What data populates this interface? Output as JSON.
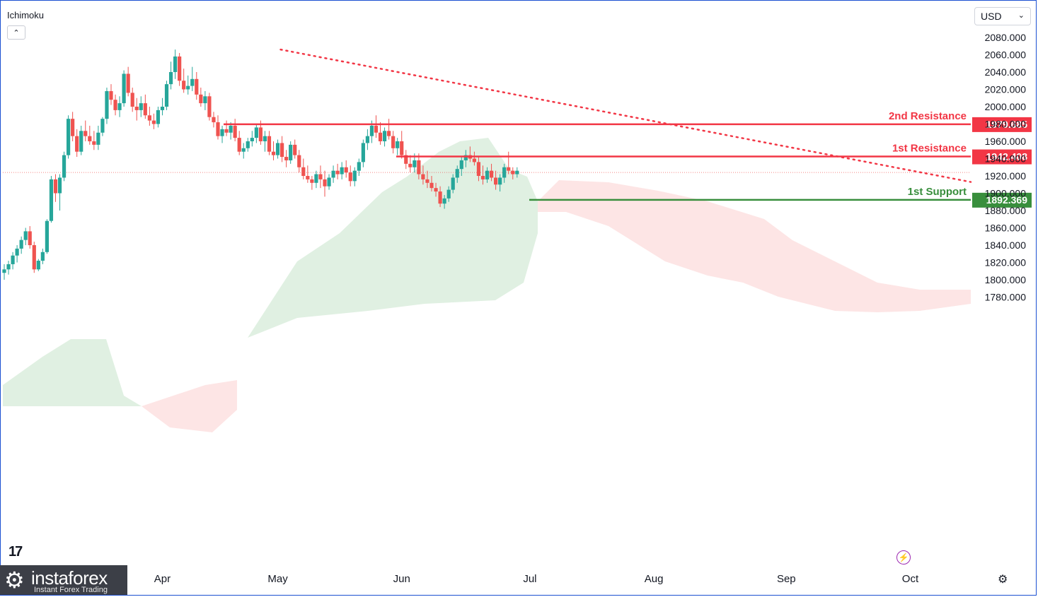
{
  "indicator": {
    "name": "Ichimoku",
    "collapse_icon": "chevron-up-icon"
  },
  "currency": {
    "selected": "USD",
    "icon": "chevron-down-icon"
  },
  "brand": {
    "name": "instaforex",
    "tagline": "Instant Forex Trading",
    "icon": "gear-logo-icon"
  },
  "tv_logo": "17",
  "colors": {
    "up": "#26a69a",
    "down": "#ef5350",
    "resistance": "#f23645",
    "support": "#388e3c",
    "cloud_bull": "#e0f0e2",
    "cloud_bear": "#fde5e5",
    "trendline": "#f23645"
  },
  "chart_data": {
    "type": "candlestick",
    "ylim": [
      1770,
      2090
    ],
    "y_ticks": [
      "2080.000",
      "2060.000",
      "2040.000",
      "2020.000",
      "2000.000",
      "1980.000",
      "1960.000",
      "1940.000",
      "1920.000",
      "1900.000",
      "1880.000",
      "1860.000",
      "1840.000",
      "1820.000",
      "1800.000",
      "1780.000"
    ],
    "x_ticks": [
      "Apr",
      "May",
      "Jun",
      "Jul",
      "Aug",
      "Sep",
      "Oct"
    ],
    "x_tick_index": [
      37,
      64,
      93,
      123,
      152,
      183,
      212
    ],
    "levels": [
      {
        "label": "2nd Resistance",
        "value": "1979.685",
        "price": 1979.685,
        "kind": "resistance"
      },
      {
        "label": "1st Resistance",
        "value": "1942.408",
        "price": 1942.408,
        "kind": "resistance"
      },
      {
        "label": "1st Support",
        "value": "1892.369",
        "price": 1892.369,
        "kind": "support"
      }
    ],
    "current_price": 1924,
    "trendline": {
      "from": [
        1,
        2066
      ],
      "to": [
        219,
        1913
      ]
    },
    "candles": [
      [
        1808,
        1818,
        1800,
        1812
      ],
      [
        1812,
        1822,
        1806,
        1818
      ],
      [
        1818,
        1832,
        1812,
        1828
      ],
      [
        1828,
        1840,
        1820,
        1836
      ],
      [
        1836,
        1850,
        1830,
        1846
      ],
      [
        1846,
        1860,
        1840,
        1856
      ],
      [
        1856,
        1862,
        1836,
        1840
      ],
      [
        1840,
        1844,
        1808,
        1812
      ],
      [
        1812,
        1824,
        1810,
        1822
      ],
      [
        1822,
        1836,
        1818,
        1832
      ],
      [
        1832,
        1870,
        1830,
        1868
      ],
      [
        1868,
        1920,
        1866,
        1916
      ],
      [
        1916,
        1922,
        1890,
        1900
      ],
      [
        1900,
        1922,
        1880,
        1918
      ],
      [
        1918,
        1948,
        1914,
        1944
      ],
      [
        1944,
        1990,
        1940,
        1986
      ],
      [
        1986,
        1994,
        1960,
        1966
      ],
      [
        1966,
        1974,
        1942,
        1948
      ],
      [
        1948,
        1978,
        1944,
        1972
      ],
      [
        1972,
        1984,
        1960,
        1966
      ],
      [
        1966,
        1978,
        1956,
        1960
      ],
      [
        1960,
        1972,
        1950,
        1956
      ],
      [
        1956,
        1978,
        1950,
        1970
      ],
      [
        1970,
        1988,
        1966,
        1986
      ],
      [
        1986,
        2022,
        1980,
        2018
      ],
      [
        2018,
        2026,
        2002,
        2008
      ],
      [
        2008,
        2014,
        1990,
        1996
      ],
      [
        1996,
        2012,
        1988,
        2004
      ],
      [
        2004,
        2042,
        2000,
        2038
      ],
      [
        2038,
        2046,
        2012,
        2016
      ],
      [
        2016,
        2022,
        1994,
        2000
      ],
      [
        2000,
        2010,
        1984,
        1996
      ],
      [
        1996,
        2012,
        1988,
        2004
      ],
      [
        2004,
        2014,
        1986,
        1990
      ],
      [
        1990,
        2000,
        1978,
        1984
      ],
      [
        1984,
        1992,
        1974,
        1980
      ],
      [
        1980,
        2000,
        1976,
        1996
      ],
      [
        1996,
        2010,
        1990,
        2000
      ],
      [
        2000,
        2030,
        1996,
        2026
      ],
      [
        2026,
        2052,
        2020,
        2040
      ],
      [
        2040,
        2066,
        2032,
        2058
      ],
      [
        2058,
        2062,
        2024,
        2030
      ],
      [
        2030,
        2044,
        2016,
        2020
      ],
      [
        2020,
        2036,
        2014,
        2024
      ],
      [
        2024,
        2046,
        2018,
        2032
      ],
      [
        2032,
        2040,
        2008,
        2014
      ],
      [
        2014,
        2022,
        2000,
        2004
      ],
      [
        2004,
        2018,
        1996,
        2012
      ],
      [
        2012,
        2016,
        1984,
        1988
      ],
      [
        1988,
        1994,
        1976,
        1982
      ],
      [
        1982,
        1990,
        1962,
        1966
      ],
      [
        1966,
        1978,
        1958,
        1974
      ],
      [
        1974,
        1984,
        1966,
        1970
      ],
      [
        1970,
        1982,
        1962,
        1978
      ],
      [
        1978,
        1986,
        1960,
        1964
      ],
      [
        1964,
        1972,
        1944,
        1948
      ],
      [
        1948,
        1958,
        1940,
        1952
      ],
      [
        1952,
        1964,
        1948,
        1960
      ],
      [
        1960,
        1972,
        1954,
        1964
      ],
      [
        1964,
        1980,
        1958,
        1976
      ],
      [
        1976,
        1984,
        1956,
        1960
      ],
      [
        1960,
        1972,
        1948,
        1966
      ],
      [
        1966,
        1972,
        1944,
        1948
      ],
      [
        1948,
        1960,
        1938,
        1944
      ],
      [
        1944,
        1962,
        1940,
        1958
      ],
      [
        1958,
        1966,
        1936,
        1942
      ],
      [
        1942,
        1950,
        1930,
        1938
      ],
      [
        1938,
        1960,
        1934,
        1956
      ],
      [
        1956,
        1962,
        1940,
        1944
      ],
      [
        1944,
        1950,
        1924,
        1930
      ],
      [
        1930,
        1940,
        1916,
        1920
      ],
      [
        1920,
        1932,
        1912,
        1916
      ],
      [
        1916,
        1920,
        1904,
        1912
      ],
      [
        1912,
        1926,
        1906,
        1922
      ],
      [
        1922,
        1932,
        1906,
        1916
      ],
      [
        1916,
        1926,
        1896,
        1908
      ],
      [
        1908,
        1922,
        1904,
        1918
      ],
      [
        1918,
        1932,
        1912,
        1926
      ],
      [
        1926,
        1934,
        1916,
        1922
      ],
      [
        1922,
        1936,
        1916,
        1930
      ],
      [
        1930,
        1938,
        1918,
        1924
      ],
      [
        1924,
        1932,
        1908,
        1914
      ],
      [
        1914,
        1930,
        1908,
        1926
      ],
      [
        1926,
        1940,
        1920,
        1936
      ],
      [
        1936,
        1962,
        1930,
        1958
      ],
      [
        1958,
        1974,
        1950,
        1966
      ],
      [
        1966,
        1984,
        1958,
        1978
      ],
      [
        1978,
        1990,
        1964,
        1970
      ],
      [
        1970,
        1982,
        1956,
        1960
      ],
      [
        1960,
        1976,
        1954,
        1972
      ],
      [
        1972,
        1986,
        1962,
        1966
      ],
      [
        1966,
        1972,
        1946,
        1952
      ],
      [
        1952,
        1964,
        1944,
        1960
      ],
      [
        1960,
        1972,
        1940,
        1944
      ],
      [
        1944,
        1950,
        1928,
        1934
      ],
      [
        1934,
        1944,
        1924,
        1930
      ],
      [
        1930,
        1946,
        1924,
        1938
      ],
      [
        1938,
        1946,
        1916,
        1922
      ],
      [
        1922,
        1932,
        1910,
        1916
      ],
      [
        1916,
        1926,
        1906,
        1912
      ],
      [
        1912,
        1920,
        1902,
        1906
      ],
      [
        1906,
        1912,
        1896,
        1902
      ],
      [
        1902,
        1908,
        1884,
        1888
      ],
      [
        1888,
        1898,
        1882,
        1894
      ],
      [
        1894,
        1908,
        1890,
        1904
      ],
      [
        1904,
        1922,
        1900,
        1918
      ],
      [
        1918,
        1932,
        1912,
        1928
      ],
      [
        1928,
        1942,
        1920,
        1938
      ],
      [
        1938,
        1950,
        1930,
        1944
      ],
      [
        1944,
        1954,
        1936,
        1940
      ],
      [
        1940,
        1948,
        1932,
        1936
      ],
      [
        1936,
        1942,
        1914,
        1920
      ],
      [
        1920,
        1932,
        1910,
        1916
      ],
      [
        1916,
        1930,
        1912,
        1926
      ],
      [
        1926,
        1934,
        1914,
        1918
      ],
      [
        1918,
        1926,
        1904,
        1910
      ],
      [
        1910,
        1922,
        1902,
        1918
      ],
      [
        1918,
        1934,
        1912,
        1930
      ],
      [
        1930,
        1948,
        1922,
        1926
      ],
      [
        1926,
        1930,
        1916,
        1922
      ],
      [
        1922,
        1930,
        1918,
        1926
      ]
    ]
  }
}
